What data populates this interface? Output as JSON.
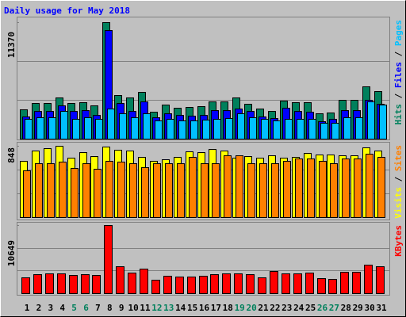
{
  "chart_data": [
    {
      "type": "bar",
      "title": "Daily usage for May 2018",
      "legend_separator": " / ",
      "ylim": [
        0,
        11370
      ],
      "yticks": [
        11370
      ],
      "grid": true,
      "series": [
        {
          "name": "Hits",
          "color": "#00805c",
          "values": [
            2862,
            3481,
            3481,
            4022,
            3481,
            3558,
            3249,
            11370,
            4254,
            4022,
            4564,
            2630,
            3326,
            3017,
            3094,
            3171,
            3635,
            3635,
            4022,
            3403,
            2939,
            2707,
            3713,
            3558,
            3558,
            2475,
            2553,
            3790,
            3790,
            5105,
            4641
          ]
        },
        {
          "name": "Files",
          "color": "#0000ff",
          "values": [
            2166,
            2707,
            2707,
            3249,
            2707,
            2785,
            2320,
            10597,
            3481,
            2707,
            3635,
            2088,
            2475,
            2320,
            2243,
            2320,
            2785,
            2785,
            2939,
            2707,
            2166,
            2011,
            3017,
            2707,
            2630,
            1702,
            1934,
            2785,
            2785,
            3790,
            3400
          ]
        },
        {
          "name": "Pages",
          "color": "#00c0ff",
          "values": [
            1934,
            2088,
            2088,
            2707,
            1934,
            2088,
            1934,
            2939,
            2475,
            2088,
            2475,
            1779,
            1934,
            1779,
            1779,
            1856,
            1934,
            2011,
            2475,
            2088,
            1934,
            1779,
            1934,
            1934,
            1934,
            1547,
            1547,
            2088,
            2088,
            3636,
            3326
          ]
        }
      ]
    },
    {
      "type": "bar",
      "legend_separator": " / ",
      "ylim": [
        0,
        848
      ],
      "yticks": [
        848
      ],
      "grid": true,
      "series": [
        {
          "name": "Visits",
          "color": "#ffff00",
          "values": [
            669,
            791,
            820,
            848,
            707,
            772,
            725,
            838,
            801,
            791,
            716,
            669,
            688,
            716,
            782,
            772,
            810,
            791,
            707,
            725,
            707,
            735,
            707,
            716,
            763,
            744,
            744,
            735,
            735,
            829,
            791
          ]
        },
        {
          "name": "Sites",
          "color": "#ff8000",
          "values": [
            556,
            641,
            641,
            659,
            584,
            641,
            575,
            669,
            659,
            641,
            593,
            641,
            641,
            641,
            716,
            641,
            641,
            735,
            735,
            641,
            641,
            641,
            669,
            697,
            697,
            669,
            641,
            697,
            697,
            754,
            716
          ]
        }
      ]
    },
    {
      "type": "bar",
      "ylim": [
        0,
        10649
      ],
      "yticks": [
        10649
      ],
      "grid": true,
      "categories": [
        "1",
        "2",
        "3",
        "4",
        "5",
        "6",
        "7",
        "8",
        "9",
        "10",
        "11",
        "12",
        "13",
        "14",
        "15",
        "16",
        "17",
        "18",
        "19",
        "20",
        "21",
        "22",
        "23",
        "24",
        "25",
        "26",
        "27",
        "28",
        "29",
        "30",
        "31"
      ],
      "category_colors": [
        "#000000",
        "#000000",
        "#000000",
        "#000000",
        "#00805c",
        "#00805c",
        "#000000",
        "#000000",
        "#000000",
        "#000000",
        "#000000",
        "#00805c",
        "#00805c",
        "#000000",
        "#000000",
        "#000000",
        "#000000",
        "#000000",
        "#00805c",
        "#00805c",
        "#000000",
        "#000000",
        "#000000",
        "#000000",
        "#000000",
        "#00805c",
        "#00805c",
        "#000000",
        "#000000",
        "#000000",
        "#000000"
      ],
      "series": [
        {
          "name": "KBytes",
          "color": "#ff0000",
          "values": [
            2476,
            2971,
            3095,
            3095,
            2847,
            2971,
            2847,
            10649,
            4209,
            3219,
            3838,
            2105,
            2724,
            2600,
            2600,
            2724,
            2971,
            3095,
            3095,
            2971,
            2476,
            3466,
            3095,
            3095,
            3219,
            2352,
            2228,
            3343,
            3343,
            4457,
            4209
          ]
        }
      ]
    }
  ]
}
